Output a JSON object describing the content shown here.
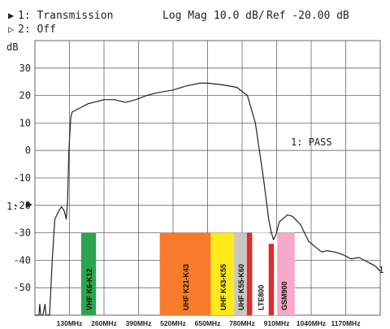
{
  "header": {
    "ch1_marker": "▶",
    "ch1_label": "1: Transmission",
    "format_label": "Log Mag",
    "scale_label": "10.0 dB/",
    "ref_label": "Ref -20.00 dB",
    "ch2_marker": "▷",
    "ch2_label": "2: Off"
  },
  "y_unit_label": "dB",
  "pass_label": "1: PASS",
  "ref_marker_label": "1:",
  "end_marker_label": "1",
  "chart_data": {
    "type": "line",
    "title": "",
    "xlabel": "",
    "ylabel": "dB",
    "xlim": [
      0,
      1300
    ],
    "ylim": [
      -60,
      40
    ],
    "grid": true,
    "x_tick_labels": [
      "130MHz",
      "260MHz",
      "390MHz",
      "520MHz",
      "650MHz",
      "780MHz",
      "910MHz",
      "1040MHz",
      "1170MHz"
    ],
    "x_tick_values": [
      130,
      260,
      390,
      520,
      650,
      780,
      910,
      1040,
      1170
    ],
    "y_tick_labels": [
      "30",
      "20",
      "10",
      "0",
      "-10",
      "-20",
      "-30",
      "-40",
      "-50"
    ],
    "y_tick_values": [
      30,
      20,
      10,
      0,
      -10,
      -20,
      -30,
      -40,
      -50
    ],
    "series": [
      {
        "points": [
          [
            0,
            -60
          ],
          [
            15,
            -60
          ],
          [
            18,
            -56
          ],
          [
            22,
            -60
          ],
          [
            30,
            -60
          ],
          [
            38,
            -56
          ],
          [
            42,
            -60
          ],
          [
            55,
            -60
          ],
          [
            65,
            -40
          ],
          [
            75,
            -25
          ],
          [
            90,
            -22
          ],
          [
            100,
            -20.5
          ],
          [
            110,
            -22
          ],
          [
            118,
            -25
          ],
          [
            123,
            -18
          ],
          [
            128,
            0
          ],
          [
            135,
            12
          ],
          [
            140,
            14
          ],
          [
            160,
            15
          ],
          [
            200,
            17
          ],
          [
            260,
            18.5
          ],
          [
            300,
            18.5
          ],
          [
            340,
            17.5
          ],
          [
            380,
            18.5
          ],
          [
            420,
            20
          ],
          [
            460,
            21
          ],
          [
            520,
            22
          ],
          [
            570,
            23.5
          ],
          [
            620,
            24.5
          ],
          [
            650,
            24.5
          ],
          [
            700,
            24
          ],
          [
            760,
            23
          ],
          [
            800,
            20
          ],
          [
            830,
            10
          ],
          [
            860,
            -10
          ],
          [
            880,
            -25
          ],
          [
            890,
            -30
          ],
          [
            898,
            -32.5
          ],
          [
            908,
            -30.5
          ],
          [
            920,
            -26
          ],
          [
            950,
            -23.5
          ],
          [
            970,
            -24
          ],
          [
            1000,
            -27
          ],
          [
            1030,
            -33
          ],
          [
            1060,
            -35.5
          ],
          [
            1080,
            -37
          ],
          [
            1100,
            -36.5
          ],
          [
            1130,
            -37
          ],
          [
            1160,
            -38
          ],
          [
            1190,
            -39.5
          ],
          [
            1220,
            -39
          ],
          [
            1240,
            -40
          ],
          [
            1260,
            -41
          ],
          [
            1280,
            -42
          ],
          [
            1300,
            -44
          ]
        ]
      }
    ],
    "bands": [
      {
        "label": "VHF K6-K12",
        "x_start": 174,
        "x_end": 230,
        "y_top": -30,
        "y_bottom": -60,
        "color": "#2da44e"
      },
      {
        "label": "UHF K21-K43",
        "x_start": 470,
        "x_end": 662,
        "y_top": -30,
        "y_bottom": -60,
        "color": "#f77b2a"
      },
      {
        "label": "UHF K43-K55",
        "x_start": 662,
        "x_end": 750,
        "y_top": -30,
        "y_bottom": -60,
        "color": "#ffe91a"
      },
      {
        "label": "UHF K55-K60",
        "x_start": 750,
        "x_end": 798,
        "y_top": -30,
        "y_bottom": -60,
        "color": "#c8c8c0"
      },
      {
        "label": "",
        "x_start": 798,
        "x_end": 818,
        "y_top": -30,
        "y_bottom": -60,
        "color": "#e02b2b"
      },
      {
        "label": "LTE800",
        "x_start": 818,
        "x_end": 880,
        "y_top": -30,
        "y_bottom": -60,
        "color": "#ffffff"
      },
      {
        "label": "",
        "x_start": 880,
        "x_end": 900,
        "y_top": -34,
        "y_bottom": -60,
        "color": "#e02b2b"
      },
      {
        "label": "",
        "x_start": 900,
        "x_end": 912,
        "y_top": -30,
        "y_bottom": -60,
        "color": "#ffffff"
      },
      {
        "label": "GSM900",
        "x_start": 912,
        "x_end": 960,
        "y_top": -30,
        "y_bottom": -60,
        "color": "#f7a8c8"
      },
      {
        "label": "",
        "x_start": 960,
        "x_end": 978,
        "y_top": -30,
        "y_bottom": -60,
        "color": "#f7a8c8"
      }
    ]
  },
  "colors": {
    "trace": "#222222",
    "grid": "#666666",
    "text": "#222222"
  }
}
